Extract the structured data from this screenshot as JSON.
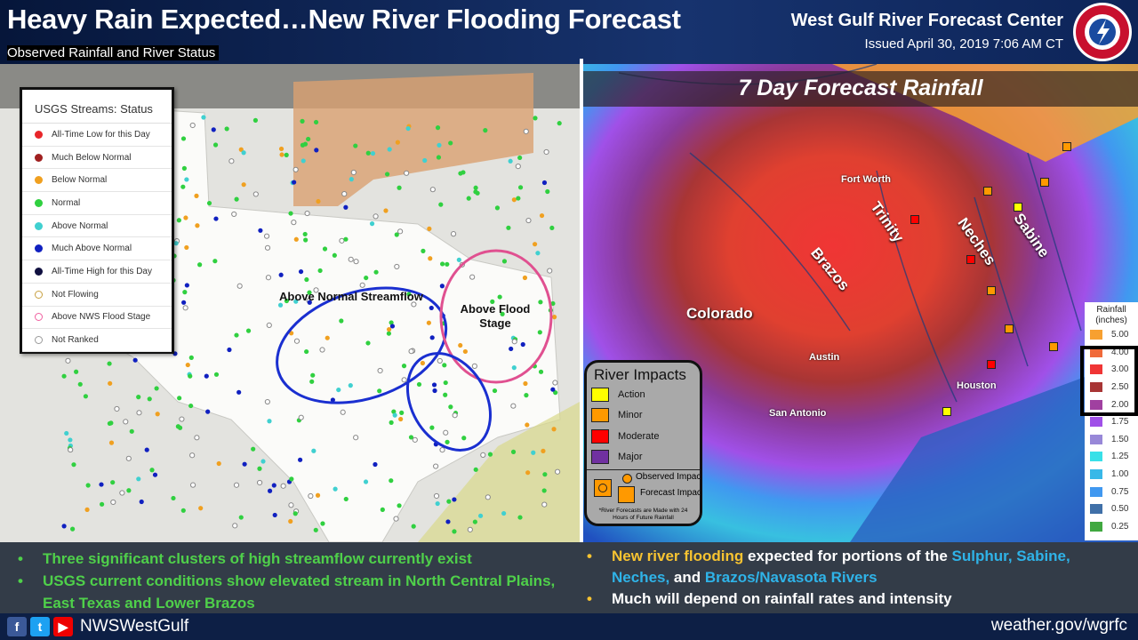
{
  "header": {
    "title": "Heavy Rain Expected…New River Flooding Forecast",
    "subtitle": "Observed Rainfall and River Status",
    "center": "West Gulf River Forecast Center",
    "issued": "Issued April 30, 2019 7:06 AM CT",
    "logo_text": "NATIONAL WEATHER SERVICE"
  },
  "left_map": {
    "legend_title": "USGS Streams: Status",
    "legend": [
      {
        "label": "All-Time Low for this Day",
        "color": "#e8262a"
      },
      {
        "label": "Much Below Normal",
        "color": "#a02020"
      },
      {
        "label": "Below Normal",
        "color": "#f0a020"
      },
      {
        "label": "Normal",
        "color": "#30d040"
      },
      {
        "label": "Above Normal",
        "color": "#40d0d0"
      },
      {
        "label": "Much Above Normal",
        "color": "#1020c0"
      },
      {
        "label": "All-Time High for this Day",
        "color": "#101040"
      },
      {
        "label": "Not Flowing",
        "color": "ring:#c8a040"
      },
      {
        "label": "Above NWS Flood Stage",
        "color": "ring:#f060a0"
      },
      {
        "label": "Not Ranked",
        "color": "ring:#999999"
      }
    ],
    "annotations": {
      "streamflow": "Above Normal Streamflow",
      "flood_stage": "Above Flood Stage"
    }
  },
  "right_map": {
    "title": "7 Day Forecast Rainfall",
    "cities": [
      "Fort Worth",
      "Austin",
      "San Antonio",
      "Houston"
    ],
    "rivers": [
      "Trinity",
      "Neches",
      "Sabine",
      "Brazos",
      "Colorado"
    ],
    "rain_legend_title": "Rainfall (inches)",
    "rain_legend": [
      {
        "value": "5.00",
        "color": "#f7a030"
      },
      {
        "value": "4.00",
        "color": "#f06a3a"
      },
      {
        "value": "3.00",
        "color": "#f03535"
      },
      {
        "value": "2.50",
        "color": "#a83535"
      },
      {
        "value": "2.00",
        "color": "#a040a0"
      },
      {
        "value": "1.75",
        "color": "#a050e8"
      },
      {
        "value": "1.50",
        "color": "#9888d8"
      },
      {
        "value": "1.25",
        "color": "#38e0e8"
      },
      {
        "value": "1.00",
        "color": "#38b8e8"
      },
      {
        "value": "0.75",
        "color": "#4098f0"
      },
      {
        "value": "0.50",
        "color": "#4070a8"
      },
      {
        "value": "0.25",
        "color": "#40a840"
      }
    ],
    "impacts": {
      "title": "River Impacts",
      "items": [
        {
          "label": "Action",
          "color": "#ffff00"
        },
        {
          "label": "Minor",
          "color": "#ff9900"
        },
        {
          "label": "Moderate",
          "color": "#ff0000"
        },
        {
          "label": "Major",
          "color": "#7030a0"
        }
      ],
      "observed": "Observed Impact",
      "forecast": "Forecast Impact",
      "note": "*River Forecasts are Made with 24 Hours of Future Rainfall"
    }
  },
  "bullets_left": [
    "Three significant clusters of high streamflow currently exist",
    "USGS  current conditions show elevated stream in North Central Plains, East Texas and Lower Brazos"
  ],
  "bullets_right": {
    "b1_a": "New river flooding",
    "b1_b": " expected for portions of the ",
    "b1_c": "Sulphur, Sabine, Neches,",
    "b1_d": " and ",
    "b1_e": "Brazos/Navasota Rivers",
    "b2": "Much will depend on rainfall rates and intensity"
  },
  "footer": {
    "handle": "NWSWestGulf",
    "url": "weather.gov/wgrfc"
  }
}
